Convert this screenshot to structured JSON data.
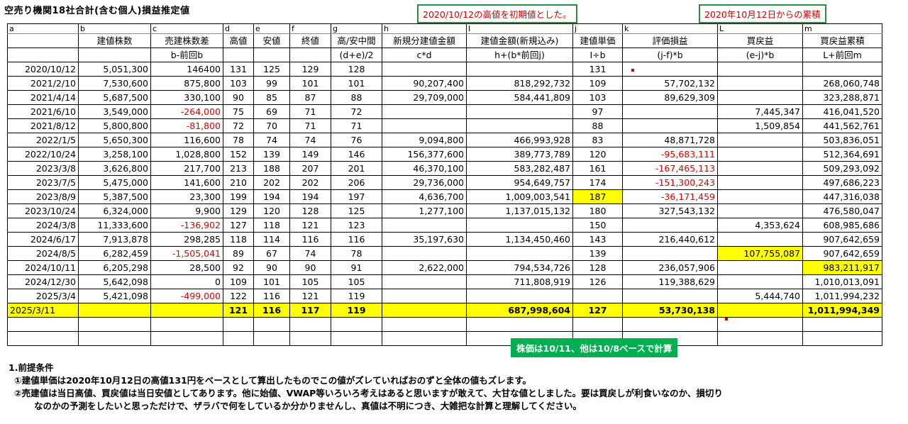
{
  "title": "空売り機関18社合計(含む個人)損益推定値",
  "callouts": {
    "initial": "2020/10/12の高値を初期値とした。",
    "cumulative": "2020年10月12日からの累積",
    "price_basis": "株価は10/11、他は10/8ベースで計算"
  },
  "col_letters": [
    "a",
    "b",
    "c",
    "d",
    "e",
    "f",
    "g",
    "h",
    "I",
    "j",
    "k",
    "L",
    "m"
  ],
  "headers": [
    "",
    "建値株数",
    "売建株数差",
    "高値",
    "安値",
    "終値",
    "高/安中間",
    "新規分建値金額",
    "建値金額(新規込み)",
    "建値単価",
    "評価損益",
    "買戻益",
    "買戻益累積"
  ],
  "formulas": [
    "",
    "",
    "b-前回b",
    "",
    "",
    "",
    "(d+e)/2",
    "c*d",
    "h+(b*前回j)",
    "I÷b",
    "(j-f)*b",
    "(e-j)*b",
    "L+前回m"
  ],
  "rows": [
    [
      "2020/10/12",
      "5,051,300",
      "146400",
      "131",
      "125",
      "129",
      "128",
      "",
      "",
      "131",
      "",
      "",
      ""
    ],
    [
      "2021/2/10",
      "7,530,600",
      "875,800",
      "103",
      "99",
      "101",
      "101",
      "90,207,400",
      "818,292,732",
      "109",
      "57,702,132",
      "",
      "268,060,748"
    ],
    [
      "2021/4/14",
      "5,687,500",
      "330,100",
      "90",
      "85",
      "87",
      "88",
      "29,709,000",
      "584,441,809",
      "103",
      "89,629,309",
      "",
      "323,288,871"
    ],
    [
      "2021/6/10",
      "3,549,000",
      "-264,000",
      "75",
      "69",
      "71",
      "72",
      "",
      "",
      "97",
      "",
      "7,445,347",
      "416,041,520"
    ],
    [
      "2021/8/12",
      "5,800,800",
      "-81,800",
      "72",
      "70",
      "71",
      "71",
      "",
      "",
      "88",
      "",
      "1,509,854",
      "441,562,761"
    ],
    [
      "2022/1/5",
      "5,650,300",
      "116,600",
      "78",
      "74",
      "74",
      "76",
      "9,094,800",
      "466,993,928",
      "83",
      "48,871,728",
      "",
      "503,836,051"
    ],
    [
      "2022/10/24",
      "3,258,100",
      "1,028,800",
      "152",
      "139",
      "149",
      "146",
      "156,377,600",
      "389,773,789",
      "120",
      "-95,683,111",
      "",
      "512,364,691"
    ],
    [
      "2023/3/8",
      "3,626,800",
      "217,700",
      "213",
      "188",
      "207",
      "201",
      "46,370,100",
      "583,282,487",
      "161",
      "-167,465,113",
      "",
      "509,293,092"
    ],
    [
      "2023/7/5",
      "5,475,000",
      "141,600",
      "210",
      "202",
      "202",
      "206",
      "29,736,000",
      "954,649,757",
      "174",
      "-151,300,243",
      "",
      "497,686,223"
    ],
    [
      "2023/8/9",
      "5,387,500",
      "23,300",
      "199",
      "194",
      "194",
      "197",
      "4,636,700",
      "1,009,003,541",
      "187",
      "-36,171,459",
      "",
      "447,316,038"
    ],
    [
      "2023/10/24",
      "6,324,000",
      "9,900",
      "129",
      "120",
      "128",
      "125",
      "1,277,100",
      "1,137,015,132",
      "180",
      "327,543,132",
      "",
      "476,580,047"
    ],
    [
      "2024/3/8",
      "11,333,600",
      "-136,902",
      "127",
      "118",
      "121",
      "123",
      "",
      "",
      "150",
      "",
      "4,353,624",
      "608,985,686"
    ],
    [
      "2024/6/17",
      "7,913,878",
      "298,285",
      "118",
      "114",
      "116",
      "116",
      "35,197,630",
      "1,134,450,460",
      "143",
      "216,440,612",
      "",
      "907,642,659"
    ],
    [
      "2024/8/5",
      "6,282,459",
      "-1,505,041",
      "89",
      "67",
      "74",
      "78",
      "",
      "",
      "139",
      "",
      "107,755,087",
      "907,642,659"
    ],
    [
      "2024/10/11",
      "6,205,298",
      "28,500",
      "92",
      "90",
      "90",
      "91",
      "2,622,000",
      "794,534,726",
      "128",
      "236,057,906",
      "",
      "983,211,917"
    ],
    [
      "2024/12/30",
      "5,642,098",
      "0",
      "109",
      "101",
      "105",
      "105",
      "",
      "711,808,919",
      "126",
      "119,388,629",
      "",
      "1,010,013,091"
    ],
    [
      "2025/3/4",
      "5,421,098",
      "-499,000",
      "122",
      "116",
      "121",
      "119",
      "",
      "",
      "",
      "",
      "5,444,740",
      "1,011,994,232"
    ],
    [
      "2025/3/11",
      "",
      "",
      "121",
      "116",
      "117",
      "119",
      "",
      "687,998,604",
      "127",
      "53,730,138",
      "",
      "1,011,994,349"
    ]
  ],
  "notes": {
    "heading": "1.前提条件",
    "note1": "①建値単価は2020年10月12日の高値131円をベースとして算出したものでこの値がズレていればおのずと全体の値もズレます。",
    "note2a": "②売建値は当日高値、買戻値は当日安値としてあります。他に始値、VWAP等いろいろ考えはあると思いますが敢えて、大甘な値としました。要は買戻しが利食いなのか、損切り",
    "note2b": "なのかの予測をしたいと思っただけで、ザラバで何をしているか分かりませんし、真値は不明につき、大雑把な計算と理解してください。"
  },
  "colors": {
    "highlight": "#ffff00",
    "negative": "#e00000",
    "callout_border": "#2e8b3a",
    "callout_green": "#00b050"
  }
}
